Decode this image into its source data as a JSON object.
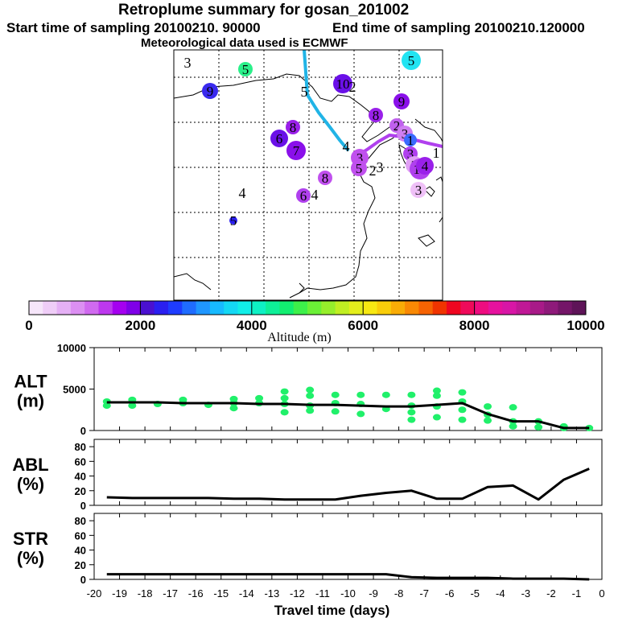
{
  "header": {
    "title": "Retroplume summary for gosan_201002",
    "start_label": "Start time of sampling 20100210. 90000",
    "end_label": "End time of sampling 20100210.120000",
    "met_label": "Meteorological data used is ECMWF"
  },
  "colorbar": {
    "colors": [
      "#f6e6fa",
      "#efcdf7",
      "#e5b0f5",
      "#dc8ff2",
      "#d06aef",
      "#bd38ee",
      "#a500f0",
      "#7f00e8",
      "#4a10d0",
      "#2a1ff0",
      "#1e3cff",
      "#1f6cff",
      "#1f96ff",
      "#17baff",
      "#14d8f4",
      "#11eee8",
      "#0ef0c4",
      "#0eef98",
      "#12ee70",
      "#3df04a",
      "#6bf036",
      "#96ee2b",
      "#c0ee22",
      "#e4ee1c",
      "#f7e812",
      "#f9cd0a",
      "#f9ac06",
      "#f98904",
      "#f66302",
      "#f03400",
      "#ef0620",
      "#ef0a5a",
      "#ee0c80",
      "#e6129e",
      "#d816a6",
      "#c01896",
      "#a81a88",
      "#8e1a7a",
      "#741668",
      "#5e1458"
    ],
    "tick_labels": [
      "0",
      "2000",
      "4000",
      "6000",
      "8000",
      "10000"
    ],
    "xlabel": "Altitude (m)"
  },
  "map": {
    "plume_markers": [
      {
        "label": "3",
        "color": "#ffffff"
      },
      {
        "label": "5",
        "color": "#2af08a"
      },
      {
        "label": "9",
        "color": "#3a2aee"
      },
      {
        "label": "5",
        "color": "#ffffff"
      },
      {
        "label": "10",
        "color": "#6a10e8"
      },
      {
        "label": "2",
        "color": "#ffffff"
      },
      {
        "label": "5",
        "color": "#22e4f2"
      },
      {
        "label": "9",
        "color": "#8a10ea"
      },
      {
        "label": "8",
        "color": "#9a20ea"
      },
      {
        "label": "8",
        "color": "#9a20ea"
      },
      {
        "label": "6",
        "color": "#6a10e8"
      },
      {
        "label": "7",
        "color": "#8a10ea"
      },
      {
        "label": "2",
        "color": "#c060ee"
      },
      {
        "label": "4",
        "color": "#ffffff"
      },
      {
        "label": "3",
        "color": "#cf7ff2"
      },
      {
        "label": "1",
        "color": "#3a6aff"
      },
      {
        "label": "3",
        "color": "#c050ee"
      },
      {
        "label": "1",
        "color": "#ffffff"
      },
      {
        "label": "3",
        "color": "#b040ee"
      },
      {
        "label": "5",
        "color": "#c050ee"
      },
      {
        "label": "2",
        "color": "#ffffff"
      },
      {
        "label": "3",
        "color": "#ffffff"
      },
      {
        "label": "8",
        "color": "#c050ee"
      },
      {
        "label": "2",
        "color": "#e0a0f4"
      },
      {
        "label": "10",
        "color": "#b040ee"
      },
      {
        "label": "4",
        "color": "#9a20ea"
      },
      {
        "label": "4",
        "color": "#ffffff"
      },
      {
        "label": "3",
        "color": "#efc0f7"
      },
      {
        "label": "6",
        "color": "#b040ee"
      },
      {
        "label": "4",
        "color": "#ffffff"
      },
      {
        "label": "5",
        "color": "#2a1ff0"
      }
    ],
    "trajectory_colors": [
      "#21b4e6",
      "#b040ee"
    ]
  },
  "chart_data": [
    {
      "type": "line",
      "panel": "ALT",
      "ylabel": "ALT",
      "yunit": "(m)",
      "ylim": [
        0,
        10000
      ],
      "xlim": [
        -20,
        0
      ],
      "yticks": [
        0,
        5000,
        10000
      ],
      "ytick_labels": [
        "0",
        "5000",
        "10000"
      ],
      "x": [
        -19.5,
        -18.5,
        -17.5,
        -16.5,
        -15.5,
        -14.5,
        -13.5,
        -12.5,
        -11.5,
        -10.5,
        -9.5,
        -8.5,
        -7.5,
        -6.5,
        -5.5,
        -4.5,
        -3.5,
        -2.5,
        -1.5,
        -0.5
      ],
      "median": [
        3400,
        3400,
        3400,
        3300,
        3300,
        3300,
        3200,
        3200,
        3100,
        3100,
        3000,
        2900,
        2900,
        3100,
        3300,
        2000,
        1100,
        1100,
        300,
        300
      ],
      "scatter_points": [
        {
          "x": -19.5,
          "y": 3000
        },
        {
          "x": -19.5,
          "y": 3500
        },
        {
          "x": -18.5,
          "y": 3000
        },
        {
          "x": -18.5,
          "y": 3700
        },
        {
          "x": -17.5,
          "y": 3200
        },
        {
          "x": -16.5,
          "y": 3300
        },
        {
          "x": -16.5,
          "y": 3700
        },
        {
          "x": -15.5,
          "y": 3100
        },
        {
          "x": -14.5,
          "y": 2700
        },
        {
          "x": -14.5,
          "y": 3300
        },
        {
          "x": -14.5,
          "y": 3800
        },
        {
          "x": -13.5,
          "y": 3300
        },
        {
          "x": -13.5,
          "y": 3900
        },
        {
          "x": -12.5,
          "y": 2200
        },
        {
          "x": -12.5,
          "y": 3200
        },
        {
          "x": -12.5,
          "y": 3900
        },
        {
          "x": -12.5,
          "y": 4700
        },
        {
          "x": -11.5,
          "y": 2400
        },
        {
          "x": -11.5,
          "y": 3000
        },
        {
          "x": -11.5,
          "y": 4200
        },
        {
          "x": -11.5,
          "y": 4900
        },
        {
          "x": -10.5,
          "y": 2300
        },
        {
          "x": -10.5,
          "y": 3300
        },
        {
          "x": -10.5,
          "y": 4300
        },
        {
          "x": -9.5,
          "y": 2000
        },
        {
          "x": -9.5,
          "y": 3200
        },
        {
          "x": -9.5,
          "y": 4300
        },
        {
          "x": -8.5,
          "y": 2600
        },
        {
          "x": -8.5,
          "y": 4300
        },
        {
          "x": -7.5,
          "y": 1300
        },
        {
          "x": -7.5,
          "y": 2200
        },
        {
          "x": -7.5,
          "y": 3000
        },
        {
          "x": -7.5,
          "y": 4300
        },
        {
          "x": -6.5,
          "y": 1600
        },
        {
          "x": -6.5,
          "y": 2900
        },
        {
          "x": -6.5,
          "y": 4200
        },
        {
          "x": -6.5,
          "y": 4800
        },
        {
          "x": -5.5,
          "y": 1300
        },
        {
          "x": -5.5,
          "y": 2500
        },
        {
          "x": -5.5,
          "y": 3500
        },
        {
          "x": -5.5,
          "y": 4600
        },
        {
          "x": -4.5,
          "y": 1200
        },
        {
          "x": -4.5,
          "y": 1900
        },
        {
          "x": -4.5,
          "y": 2900
        },
        {
          "x": -3.5,
          "y": 500
        },
        {
          "x": -3.5,
          "y": 1100
        },
        {
          "x": -3.5,
          "y": 2800
        },
        {
          "x": -2.5,
          "y": 400
        },
        {
          "x": -2.5,
          "y": 1100
        },
        {
          "x": -1.5,
          "y": 300
        },
        {
          "x": -1.5,
          "y": 500
        },
        {
          "x": -0.5,
          "y": 300
        }
      ]
    },
    {
      "type": "line",
      "panel": "ABL",
      "ylabel": "ABL",
      "yunit": "(%)",
      "ylim": [
        0,
        90
      ],
      "xlim": [
        -20,
        0
      ],
      "yticks": [
        0,
        20,
        40,
        60,
        80
      ],
      "ytick_labels": [
        "0",
        "20",
        "40",
        "60",
        "80"
      ],
      "x": [
        -19.5,
        -18.5,
        -17.5,
        -16.5,
        -15.5,
        -14.5,
        -13.5,
        -12.5,
        -11.5,
        -10.5,
        -9.5,
        -8.5,
        -7.5,
        -6.5,
        -5.5,
        -4.5,
        -3.5,
        -2.5,
        -1.5,
        -0.5
      ],
      "values": [
        11,
        10,
        10,
        10,
        10,
        9,
        9,
        8,
        8,
        8,
        13,
        17,
        20,
        9,
        9,
        25,
        27,
        8,
        35,
        50
      ]
    },
    {
      "type": "line",
      "panel": "STR",
      "ylabel": "STR",
      "yunit": "(%)",
      "ylim": [
        0,
        90
      ],
      "xlim": [
        -20,
        0
      ],
      "yticks": [
        0,
        20,
        40,
        60,
        80
      ],
      "ytick_labels": [
        "0",
        "20",
        "40",
        "60",
        "80"
      ],
      "x": [
        -19.5,
        -18.5,
        -17.5,
        -16.5,
        -15.5,
        -14.5,
        -13.5,
        -12.5,
        -11.5,
        -10.5,
        -9.5,
        -8.5,
        -7.5,
        -6.5,
        -5.5,
        -4.5,
        -3.5,
        -2.5,
        -1.5,
        -0.5
      ],
      "values": [
        7,
        7,
        7,
        7,
        7,
        7,
        7,
        7,
        7,
        7,
        7,
        7,
        3,
        2,
        2,
        2,
        1,
        1,
        1,
        0
      ],
      "xlabel": "Travel time (days)",
      "xtick_labels": [
        "-20",
        "-19",
        "-18",
        "-17",
        "-16",
        "-15",
        "-14",
        "-13",
        "-12",
        "-11",
        "-10",
        "-9",
        "-8",
        "-7",
        "-6",
        "-5",
        "-4",
        "-3",
        "-2",
        "-1",
        "0"
      ]
    }
  ]
}
